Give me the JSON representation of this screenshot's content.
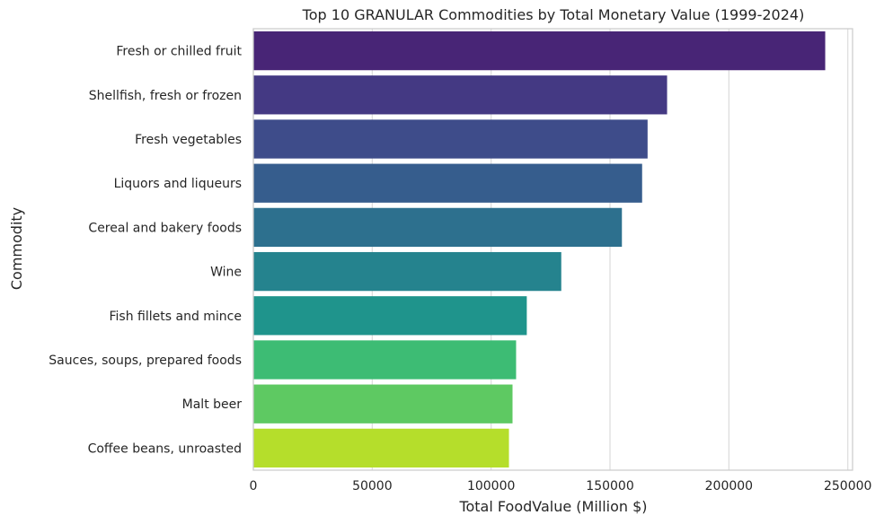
{
  "chart_data": {
    "type": "bar",
    "orientation": "horizontal",
    "title": "Top 10 GRANULAR Commodities by Total Monetary Value (1999-2024)",
    "xlabel": "Total FoodValue (Million $)",
    "ylabel": "Commodity",
    "xlim": [
      0,
      252000
    ],
    "xticks": [
      "0",
      "50000",
      "100000",
      "150000",
      "200000",
      "250000"
    ],
    "xtick_values": [
      0,
      50000,
      100000,
      150000,
      200000,
      250000
    ],
    "grid": "x-axis",
    "categories": [
      "Fresh or chilled fruit",
      "Shellfish, fresh or frozen",
      "Fresh vegetables",
      "Liquors and liqueurs",
      "Cereal and bakery foods",
      "Wine",
      "Fish fillets and mince",
      "Sauces, soups, prepared foods",
      "Malt beer",
      "Coffee beans, unroasted"
    ],
    "values": [
      240500,
      174000,
      165800,
      163500,
      155000,
      129500,
      115000,
      110500,
      109000,
      107500
    ],
    "colors": [
      "#482576",
      "#443983",
      "#3e4c8a",
      "#365d8d",
      "#2d708e",
      "#25838e",
      "#1f948c",
      "#3dbc74",
      "#5ec962",
      "#b5de2b"
    ]
  }
}
